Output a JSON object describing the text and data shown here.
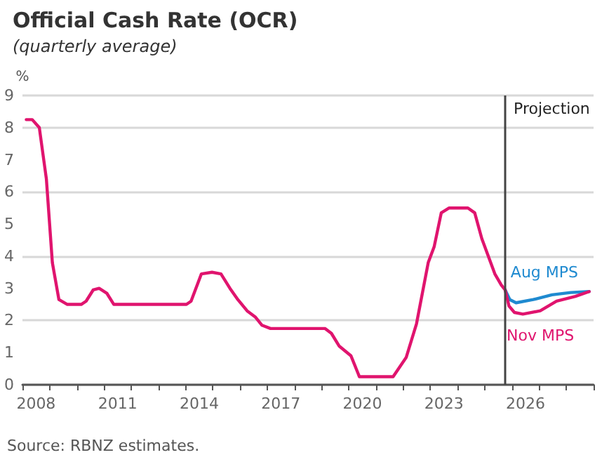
{
  "chart_data": {
    "type": "line",
    "title": "Official Cash Rate (OCR)",
    "subtitle": "(quarterly average)",
    "ylabel": "%",
    "annotations": [
      "Source: RBNZ estimates."
    ],
    "xlim": [
      2008,
      2029
    ],
    "ylim": [
      0,
      9
    ],
    "yticks": [
      0,
      1,
      2,
      3,
      4,
      5,
      6,
      7,
      8,
      9
    ],
    "xticks": [
      {
        "value": 2008,
        "label": null
      },
      {
        "value": 2009,
        "label": null
      },
      {
        "value": 2010,
        "label": null
      },
      {
        "value": 2011,
        "label": null
      },
      {
        "value": 2012,
        "label": null
      },
      {
        "value": 2013,
        "label": null
      },
      {
        "value": 2014,
        "label": null
      },
      {
        "value": 2015,
        "label": null
      },
      {
        "value": 2016,
        "label": null
      },
      {
        "value": 2017,
        "label": null
      },
      {
        "value": 2018,
        "label": null
      },
      {
        "value": 2019,
        "label": null
      },
      {
        "value": 2020,
        "label": null
      },
      {
        "value": 2021,
        "label": null
      },
      {
        "value": 2022,
        "label": null
      },
      {
        "value": 2023,
        "label": null
      },
      {
        "value": 2024,
        "label": null
      },
      {
        "value": 2025,
        "label": null
      },
      {
        "value": 2026,
        "label": null
      },
      {
        "value": 2027,
        "label": null
      },
      {
        "value": 2028,
        "label": null
      },
      {
        "value": 2029,
        "label": null
      },
      {
        "value": 2008.5,
        "label": "2008"
      },
      {
        "value": 2011.5,
        "label": "2011"
      },
      {
        "value": 2014.5,
        "label": "2014"
      },
      {
        "value": 2017.5,
        "label": "2017"
      },
      {
        "value": 2020.5,
        "label": "2020"
      },
      {
        "value": 2023.5,
        "label": "2023"
      },
      {
        "value": 2026.5,
        "label": "2026"
      }
    ],
    "grid": "y",
    "legend": false,
    "marker": "none",
    "line_style": "solid",
    "ref_lines": [
      {
        "axis": "x",
        "value": 2025.75,
        "label": "Projection",
        "color": "#444444"
      }
    ],
    "series": [
      {
        "name": "Nov MPS",
        "color": "#e0146e",
        "x": [
          2008.14,
          2008.36,
          2008.62,
          2008.88,
          2009.1,
          2009.34,
          2009.65,
          2010.16,
          2010.34,
          2010.6,
          2010.82,
          2011.1,
          2011.36,
          2014.03,
          2014.2,
          2014.58,
          2014.97,
          2015.3,
          2015.63,
          2015.92,
          2016.26,
          2016.57,
          2016.81,
          2017.12,
          2019.13,
          2019.36,
          2019.65,
          2020.08,
          2020.39,
          2021.63,
          2022.11,
          2022.49,
          2022.92,
          2023.14,
          2023.4,
          2023.69,
          2024.38,
          2024.63,
          2024.89,
          2025.37,
          2025.61,
          2025.75,
          2025.89,
          2026.09,
          2026.4,
          2027.04,
          2027.64,
          2028.33,
          2028.84
        ],
        "values": [
          8.25,
          8.25,
          8.0,
          6.4,
          3.8,
          2.65,
          2.5,
          2.5,
          2.6,
          2.95,
          3.0,
          2.85,
          2.5,
          2.5,
          2.6,
          3.45,
          3.5,
          3.45,
          3.0,
          2.65,
          2.3,
          2.1,
          1.85,
          1.75,
          1.75,
          1.6,
          1.2,
          0.9,
          0.25,
          0.25,
          0.85,
          1.9,
          3.8,
          4.3,
          5.35,
          5.5,
          5.5,
          5.35,
          4.55,
          3.45,
          3.1,
          2.95,
          2.45,
          2.25,
          2.2,
          2.3,
          2.6,
          2.75,
          2.9
        ]
      },
      {
        "name": "Aug MPS",
        "color": "#1f8ad0",
        "x": [
          2025.75,
          2025.92,
          2026.15,
          2026.78,
          2027.47,
          2028.16,
          2028.84
        ],
        "values": [
          2.95,
          2.65,
          2.55,
          2.65,
          2.8,
          2.87,
          2.9
        ]
      }
    ]
  }
}
